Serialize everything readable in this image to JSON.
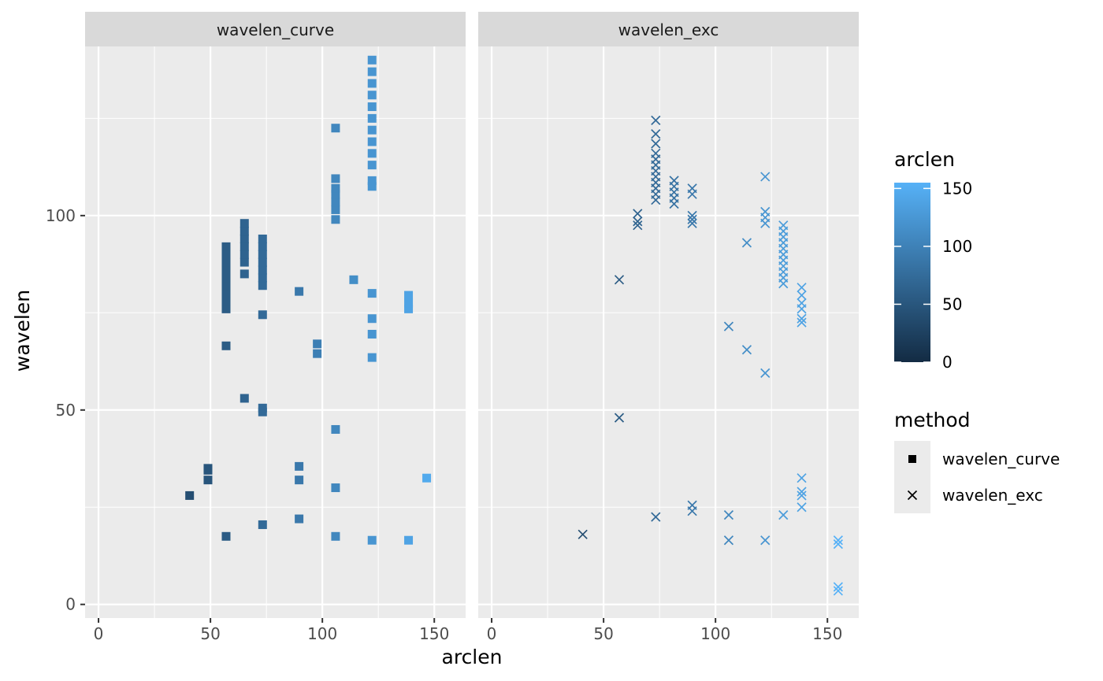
{
  "chart_data": {
    "type": "scatter",
    "xlabel": "arclen",
    "ylabel": "wavelen",
    "xlim": [
      -6,
      164
    ],
    "ylim": [
      -3.5,
      143.5
    ],
    "x_ticks": [
      0,
      50,
      100,
      150
    ],
    "y_ticks": [
      0,
      50,
      100
    ],
    "grid": true,
    "facets": [
      {
        "label": "wavelen_curve",
        "shape": "square",
        "points": [
          [
            40.7,
            28
          ],
          [
            48.9,
            32
          ],
          [
            48.9,
            34.5
          ],
          [
            48.9,
            35
          ],
          [
            57,
            17.5
          ],
          [
            57,
            66.5
          ],
          [
            57,
            76
          ],
          [
            57,
            78
          ],
          [
            57,
            80
          ],
          [
            57,
            82
          ],
          [
            57,
            84
          ],
          [
            57,
            86
          ],
          [
            57,
            88
          ],
          [
            57,
            90
          ],
          [
            57,
            92
          ],
          [
            65.2,
            53
          ],
          [
            65.2,
            85
          ],
          [
            65.2,
            88
          ],
          [
            65.2,
            90
          ],
          [
            65.2,
            92
          ],
          [
            65.2,
            94
          ],
          [
            65.2,
            96
          ],
          [
            65.2,
            98
          ],
          [
            73.3,
            20.5
          ],
          [
            73.3,
            49.5
          ],
          [
            73.3,
            50.5
          ],
          [
            73.3,
            74.5
          ],
          [
            73.3,
            82
          ],
          [
            73.3,
            84
          ],
          [
            73.3,
            86
          ],
          [
            73.3,
            88
          ],
          [
            73.3,
            90
          ],
          [
            73.3,
            92
          ],
          [
            73.3,
            94
          ],
          [
            89.6,
            22
          ],
          [
            89.6,
            32
          ],
          [
            89.6,
            35.5
          ],
          [
            89.6,
            80.5
          ],
          [
            97.7,
            64.5
          ],
          [
            97.7,
            67
          ],
          [
            105.9,
            17.5
          ],
          [
            105.9,
            30
          ],
          [
            105.9,
            45
          ],
          [
            105.9,
            99
          ],
          [
            105.9,
            101.5
          ],
          [
            105.9,
            103.5
          ],
          [
            105.9,
            105.5
          ],
          [
            105.9,
            107
          ],
          [
            105.9,
            109.5
          ],
          [
            105.9,
            122.5
          ],
          [
            114,
            83.5
          ],
          [
            122.2,
            16.5
          ],
          [
            122.2,
            63.5
          ],
          [
            122.2,
            69.5
          ],
          [
            122.2,
            73.5
          ],
          [
            122.2,
            80
          ],
          [
            122.2,
            107.5
          ],
          [
            122.2,
            109
          ],
          [
            122.2,
            113
          ],
          [
            122.2,
            116
          ],
          [
            122.2,
            119
          ],
          [
            122.2,
            122
          ],
          [
            122.2,
            125
          ],
          [
            122.2,
            128
          ],
          [
            122.2,
            131
          ],
          [
            122.2,
            134
          ],
          [
            122.2,
            137
          ],
          [
            122.2,
            140
          ],
          [
            138.5,
            16.5
          ],
          [
            138.5,
            76
          ],
          [
            138.5,
            77.5
          ],
          [
            138.5,
            79.5
          ],
          [
            146.6,
            32.5
          ]
        ]
      },
      {
        "label": "wavelen_exc",
        "shape": "cross",
        "points": [
          [
            40.7,
            18
          ],
          [
            57,
            48
          ],
          [
            57,
            83.5
          ],
          [
            65.2,
            97.5
          ],
          [
            65.2,
            98.5
          ],
          [
            65.2,
            100.5
          ],
          [
            73.3,
            22.5
          ],
          [
            73.3,
            104
          ],
          [
            73.3,
            105.5
          ],
          [
            73.3,
            107
          ],
          [
            73.3,
            108.5
          ],
          [
            73.3,
            110
          ],
          [
            73.3,
            111.5
          ],
          [
            73.3,
            113
          ],
          [
            73.3,
            114.5
          ],
          [
            73.3,
            116
          ],
          [
            73.3,
            118.5
          ],
          [
            73.3,
            121
          ],
          [
            73.3,
            124.5
          ],
          [
            81.5,
            103
          ],
          [
            81.5,
            104.5
          ],
          [
            81.5,
            106
          ],
          [
            81.5,
            107.5
          ],
          [
            81.5,
            109
          ],
          [
            89.6,
            24
          ],
          [
            89.6,
            25.5
          ],
          [
            89.6,
            98
          ],
          [
            89.6,
            99
          ],
          [
            89.6,
            100
          ],
          [
            89.6,
            105.5
          ],
          [
            89.6,
            107
          ],
          [
            105.9,
            16.5
          ],
          [
            105.9,
            23
          ],
          [
            105.9,
            71.5
          ],
          [
            114,
            65.5
          ],
          [
            114,
            93
          ],
          [
            122.2,
            16.5
          ],
          [
            122.2,
            59.5
          ],
          [
            122.2,
            98
          ],
          [
            122.2,
            99.5
          ],
          [
            122.2,
            101
          ],
          [
            122.2,
            110
          ],
          [
            130.3,
            23
          ],
          [
            130.3,
            82.5
          ],
          [
            130.3,
            84
          ],
          [
            130.3,
            85.5
          ],
          [
            130.3,
            87
          ],
          [
            130.3,
            88.5
          ],
          [
            130.3,
            90
          ],
          [
            130.3,
            91.5
          ],
          [
            130.3,
            93
          ],
          [
            130.3,
            94.5
          ],
          [
            130.3,
            96
          ],
          [
            130.3,
            97.5
          ],
          [
            138.5,
            25
          ],
          [
            138.5,
            28
          ],
          [
            138.5,
            29
          ],
          [
            138.5,
            32.5
          ],
          [
            138.5,
            72.5
          ],
          [
            138.5,
            73.5
          ],
          [
            138.5,
            76
          ],
          [
            138.5,
            77.5
          ],
          [
            138.5,
            79.5
          ],
          [
            138.5,
            81.5
          ],
          [
            154.8,
            3.5
          ],
          [
            154.8,
            4.5
          ],
          [
            154.8,
            15.5
          ],
          [
            154.8,
            16.5
          ]
        ]
      }
    ],
    "color_legend": {
      "title": "arclen",
      "min": 0,
      "max": 155,
      "ticks": [
        0,
        50,
        100,
        150
      ],
      "low_color": "#132B43",
      "high_color": "#56B1F7"
    },
    "shape_legend": {
      "title": "method",
      "entries": [
        "wavelen_curve",
        "wavelen_exc"
      ]
    },
    "colors": {
      "panel_bg": "#EBEBEB",
      "strip_bg": "#D9D9D9",
      "grid_major": "#FFFFFF"
    }
  }
}
